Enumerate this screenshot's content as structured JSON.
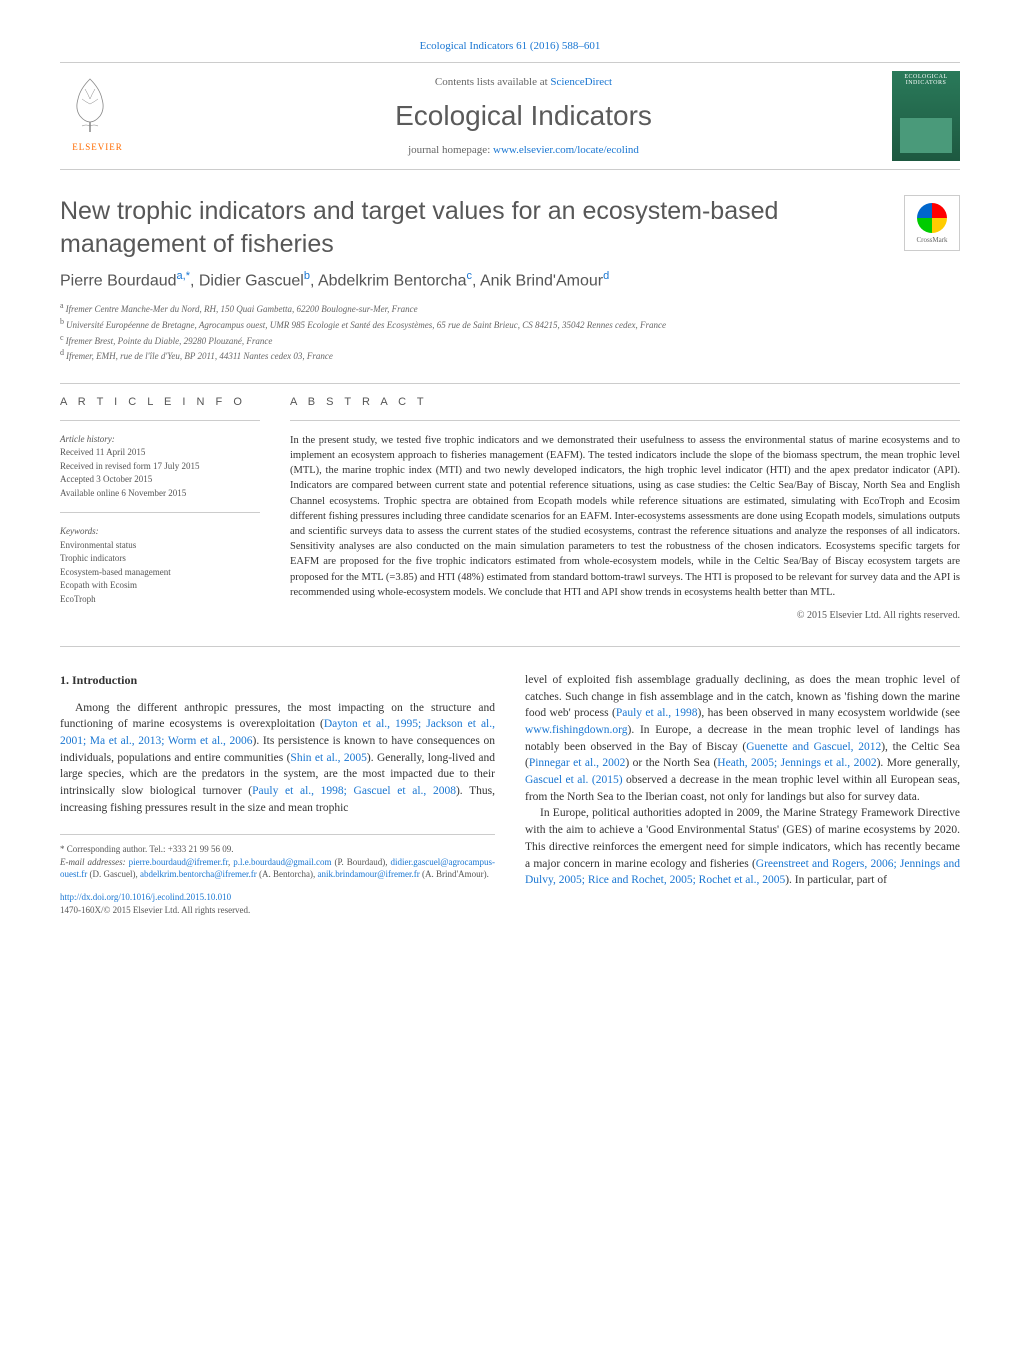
{
  "header": {
    "citation": "Ecological Indicators 61 (2016) 588–601",
    "contents_prefix": "Contents lists available at ",
    "contents_link": "ScienceDirect",
    "journal_name": "Ecological Indicators",
    "homepage_prefix": "journal homepage: ",
    "homepage_url": "www.elsevier.com/locate/ecolind",
    "publisher": "ELSEVIER",
    "cover_title": "ECOLOGICAL INDICATORS"
  },
  "crossmark_label": "CrossMark",
  "title": "New trophic indicators and target values for an ecosystem-based management of fisheries",
  "authors_html": "Pierre Bourdaud|a,*|, Didier Gascuel|b|, Abdelkrim Bentorcha|c|, Anik Brind'Amour|d|",
  "authors": [
    {
      "name": "Pierre Bourdaud",
      "sup": "a,*"
    },
    {
      "name": "Didier Gascuel",
      "sup": "b"
    },
    {
      "name": "Abdelkrim Bentorcha",
      "sup": "c"
    },
    {
      "name": "Anik Brind'Amour",
      "sup": "d"
    }
  ],
  "affiliations": [
    {
      "sup": "a",
      "text": "Ifremer Centre Manche-Mer du Nord, RH, 150 Quai Gambetta, 62200 Boulogne-sur-Mer, France"
    },
    {
      "sup": "b",
      "text": "Université Européenne de Bretagne, Agrocampus ouest, UMR 985 Ecologie et Santé des Ecosystèmes, 65 rue de Saint Brieuc, CS 84215, 35042 Rennes cedex, France"
    },
    {
      "sup": "c",
      "text": "Ifremer Brest, Pointe du Diable, 29280 Plouzané, France"
    },
    {
      "sup": "d",
      "text": "Ifremer, EMH, rue de l'île d'Yeu, BP 2011, 44311 Nantes cedex 03, France"
    }
  ],
  "article_info": {
    "heading": "A R T I C L E  I N F O",
    "history_label": "Article history:",
    "history": [
      "Received 11 April 2015",
      "Received in revised form 17 July 2015",
      "Accepted 3 October 2015",
      "Available online 6 November 2015"
    ],
    "keywords_label": "Keywords:",
    "keywords": [
      "Environmental status",
      "Trophic indicators",
      "Ecosystem-based management",
      "Ecopath with Ecosim",
      "EcoTroph"
    ]
  },
  "abstract": {
    "heading": "A B S T R A C T",
    "text": "In the present study, we tested five trophic indicators and we demonstrated their usefulness to assess the environmental status of marine ecosystems and to implement an ecosystem approach to fisheries management (EAFM). The tested indicators include the slope of the biomass spectrum, the mean trophic level (MTL), the marine trophic index (MTI) and two newly developed indicators, the high trophic level indicator (HTI) and the apex predator indicator (API). Indicators are compared between current state and potential reference situations, using as case studies: the Celtic Sea/Bay of Biscay, North Sea and English Channel ecosystems. Trophic spectra are obtained from Ecopath models while reference situations are estimated, simulating with EcoTroph and Ecosim different fishing pressures including three candidate scenarios for an EAFM. Inter-ecosystems assessments are done using Ecopath models, simulations outputs and scientific surveys data to assess the current states of the studied ecosystems, contrast the reference situations and analyze the responses of all indicators. Sensitivity analyses are also conducted on the main simulation parameters to test the robustness of the chosen indicators. Ecosystems specific targets for EAFM are proposed for the five trophic indicators estimated from whole-ecosystem models, while in the Celtic Sea/Bay of Biscay ecosystem targets are proposed for the MTL (=3.85) and HTI (48%) estimated from standard bottom-trawl surveys. The HTI is proposed to be relevant for survey data and the API is recommended using whole-ecosystem models. We conclude that HTI and API show trends in ecosystems health better than MTL.",
    "copyright": "© 2015 Elsevier Ltd. All rights reserved."
  },
  "body": {
    "section_heading": "1. Introduction",
    "col1_p1_prefix": "Among the different anthropic pressures, the most impacting on the structure and functioning of marine ecosystems is overexploitation (",
    "col1_cite1": "Dayton et al., 1995; Jackson et al., 2001; Ma et al., 2013; Worm et al., 2006",
    "col1_p1_mid1": "). Its persistence is known to have consequences on individuals, populations and entire communities (",
    "col1_cite2": "Shin et al., 2005",
    "col1_p1_mid2": "). Generally, long-lived and large species, which are the predators in the system, are the most impacted due to their intrinsically slow biological turnover (",
    "col1_cite3": "Pauly et al., 1998; Gascuel et al., 2008",
    "col1_p1_end": "). Thus, increasing fishing pressures result in the size and mean trophic",
    "col2_p1_prefix": "level of exploited fish assemblage gradually declining, as does the mean trophic level of catches. Such change in fish assemblage and in the catch, known as 'fishing down the marine food web' process (",
    "col2_cite1": "Pauly et al., 1998",
    "col2_p1_mid1": "), has been observed in many ecosystem worldwide (see ",
    "col2_url1": "www.fishingdown.org",
    "col2_p1_mid2": "). In Europe, a decrease in the mean trophic level of landings has notably been observed in the Bay of Biscay (",
    "col2_cite2": "Guenette and Gascuel, 2012",
    "col2_p1_mid3": "), the Celtic Sea (",
    "col2_cite3": "Pinnegar et al., 2002",
    "col2_p1_mid4": ") or the North Sea (",
    "col2_cite4": "Heath, 2005; Jennings et al., 2002",
    "col2_p1_mid5": "). More generally, ",
    "col2_cite5": "Gascuel et al. (2015)",
    "col2_p1_end": " observed a decrease in the mean trophic level within all European seas, from the North Sea to the Iberian coast, not only for landings but also for survey data.",
    "col2_p2_prefix": "In Europe, political authorities adopted in 2009, the Marine Strategy Framework Directive with the aim to achieve a 'Good Environmental Status' (GES) of marine ecosystems by 2020. This directive reinforces the emergent need for simple indicators, which has recently became a major concern in marine ecology and fisheries (",
    "col2_cite6": "Greenstreet and Rogers, 2006; Jennings and Dulvy, 2005; Rice and Rochet, 2005; Rochet et al., 2005",
    "col2_p2_end": "). In particular, part of"
  },
  "footer": {
    "corresp_label": "* Corresponding author. Tel.: +333 21 99 56 09.",
    "email_label": "E-mail addresses: ",
    "emails": [
      {
        "addr": "pierre.bourdaud@ifremer.fr",
        "sep": ", "
      },
      {
        "addr": "p.l.e.bourdaud@gmail.com",
        "suf": " (P. Bourdaud), "
      },
      {
        "addr": "didier.gascuel@agrocampus-ouest.fr",
        "suf": " (D. Gascuel), "
      },
      {
        "addr": "abdelkrim.bentorcha@ifremer.fr",
        "suf": " (A. Bentorcha), "
      },
      {
        "addr": "anik.brindamour@ifremer.fr",
        "suf": " (A. Brind'Amour)."
      }
    ],
    "doi": "http://dx.doi.org/10.1016/j.ecolind.2015.10.010",
    "issn_line": "1470-160X/© 2015 Elsevier Ltd. All rights reserved."
  },
  "colors": {
    "link": "#1976d2",
    "text": "#333333",
    "muted": "#666666",
    "orange": "#ff6b00",
    "cover_bg": "#2a7a5a"
  }
}
